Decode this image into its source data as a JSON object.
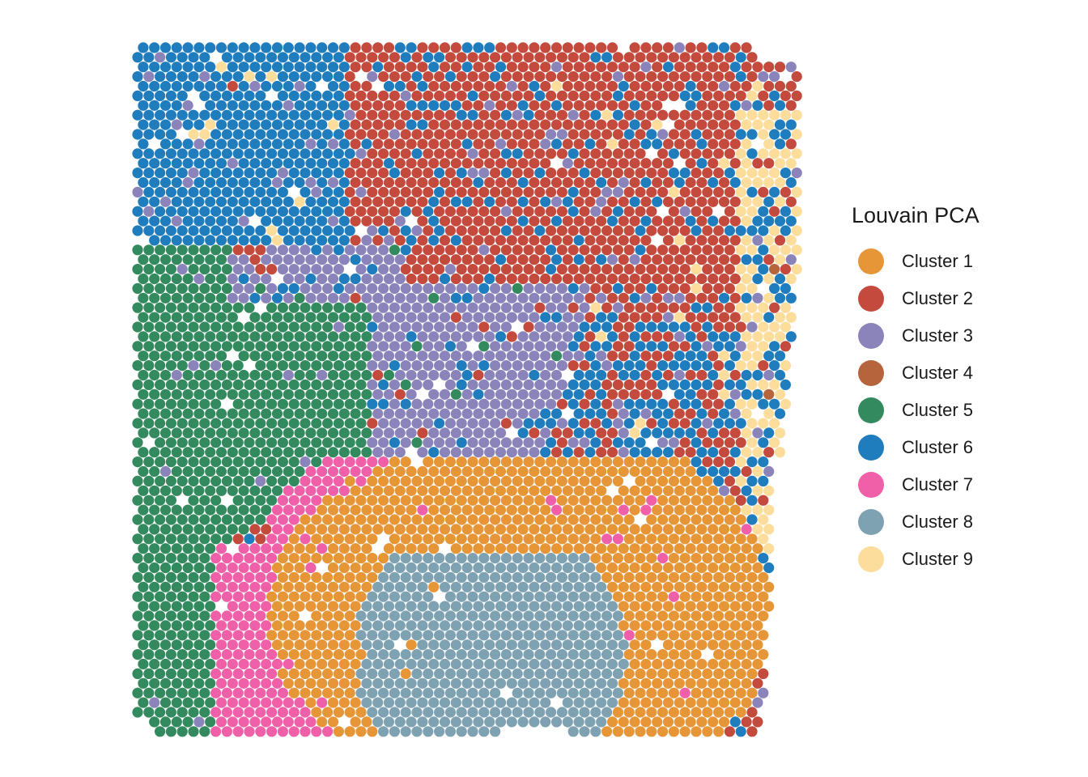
{
  "chart_data": {
    "type": "scatter",
    "title": "",
    "xlabel": "",
    "ylabel": "",
    "grid": false,
    "axes": "none",
    "legend": {
      "title": "Louvain PCA",
      "placement": "right",
      "entries": [
        {
          "name": "Cluster 1",
          "color": "#E69537"
        },
        {
          "name": "Cluster 2",
          "color": "#C34A3D"
        },
        {
          "name": "Cluster 3",
          "color": "#8B84BB"
        },
        {
          "name": "Cluster 4",
          "color": "#B6643B"
        },
        {
          "name": "Cluster 5",
          "color": "#338A5E"
        },
        {
          "name": "Cluster 6",
          "color": "#1F7DBD"
        },
        {
          "name": "Cluster 7",
          "color": "#EF60A8"
        },
        {
          "name": "Cluster 8",
          "color": "#7FA2B2"
        },
        {
          "name": "Cluster 9",
          "color": "#FCDD9C"
        }
      ]
    },
    "spot_layout": "hexagonal",
    "regions": [
      {
        "cluster": "Cluster 6",
        "location": "top-left",
        "anchor": [
          0.12,
          0.1
        ],
        "extent": [
          0.16,
          0.16
        ]
      },
      {
        "cluster": "Cluster 2",
        "location": "top-center / top-right",
        "anchor": [
          0.58,
          0.2
        ],
        "extent": [
          0.22,
          0.2
        ]
      },
      {
        "cluster": "Cluster 3",
        "location": "middle band",
        "anchor": [
          0.38,
          0.42
        ],
        "extent": [
          0.2,
          0.07
        ]
      },
      {
        "cluster": "Cluster 5",
        "location": "left",
        "anchor": [
          0.12,
          0.62
        ],
        "extent": [
          0.14,
          0.26
        ]
      },
      {
        "cluster": "Cluster 7",
        "location": "lower-left arc",
        "anchor": [
          0.3,
          0.65
        ],
        "extent": [
          0.05,
          0.2
        ]
      },
      {
        "cluster": "Cluster 1",
        "location": "lower-center",
        "anchor": [
          0.55,
          0.72
        ],
        "extent": [
          0.26,
          0.14
        ]
      },
      {
        "cluster": "Cluster 8",
        "location": "bottom-center",
        "anchor": [
          0.53,
          0.86
        ],
        "extent": [
          0.17,
          0.12
        ]
      },
      {
        "cluster": "Cluster 9",
        "location": "right edge",
        "anchor": [
          0.93,
          0.35
        ],
        "extent": [
          0.04,
          0.3
        ]
      },
      {
        "cluster": "Cluster 4",
        "location": "sparse outliers",
        "anchor": [
          0.92,
          0.12
        ],
        "extent": [
          0.01,
          0.01
        ]
      }
    ]
  }
}
